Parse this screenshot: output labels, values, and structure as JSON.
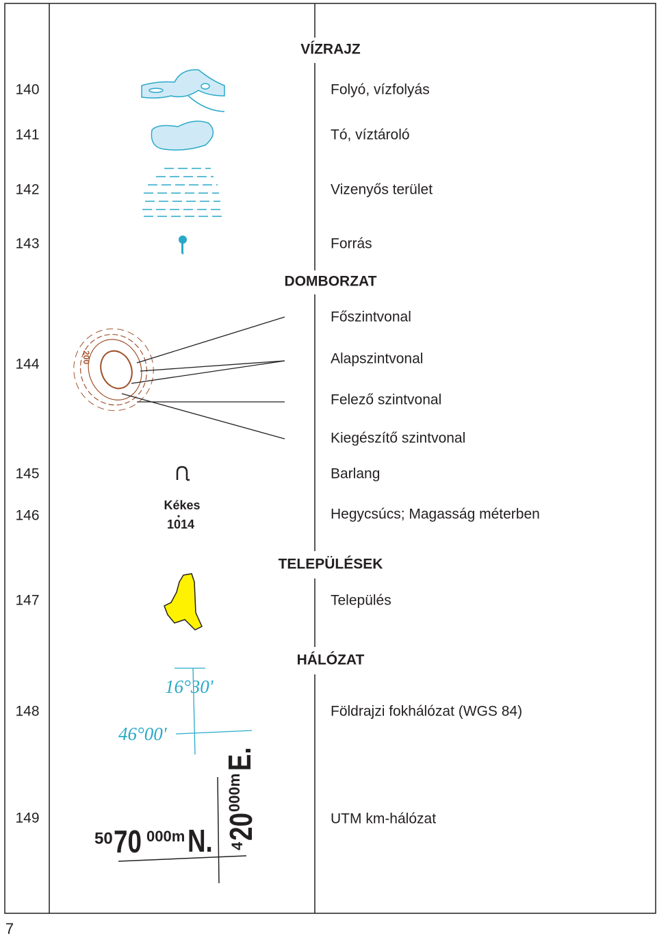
{
  "page_number": "7",
  "sections": [
    {
      "title": "VÍZRAJZ",
      "items": [
        {
          "number": "140",
          "label": "Folyó, vízfolyás"
        },
        {
          "number": "141",
          "label": "Tó, víztároló"
        },
        {
          "number": "142",
          "label": "Vizenyős terület"
        },
        {
          "number": "143",
          "label": "Forrás"
        }
      ]
    },
    {
      "title": "DOMBORZAT",
      "items": [
        {
          "number": "144",
          "labels": [
            "Főszintvonal",
            "Alapszintvonal",
            "Felező szintvonal",
            "Kiegészítő szintvonal"
          ]
        },
        {
          "number": "145",
          "label": "Barlang"
        },
        {
          "number": "146",
          "label": "Hegycsúcs; Magasság méterben"
        }
      ]
    },
    {
      "title": "TELEPÜLÉSEK",
      "items": [
        {
          "number": "147",
          "label": "Település"
        }
      ]
    },
    {
      "title": "HÁLÓZAT",
      "items": [
        {
          "number": "148",
          "label": "Földrajzi fokhálózat (WGS 84)"
        },
        {
          "number": "149",
          "label": "UTM km-hálózat"
        }
      ]
    }
  ],
  "symbol_texts": {
    "contour": "200",
    "peak_name": "Kékes",
    "peak_height": "1014",
    "longitude": "16°30'",
    "latitude": "46°00'",
    "utm_north": [
      "50",
      "70",
      "000m",
      "N."
    ],
    "utm_east": [
      "4",
      "20",
      "000m",
      "E."
    ]
  }
}
